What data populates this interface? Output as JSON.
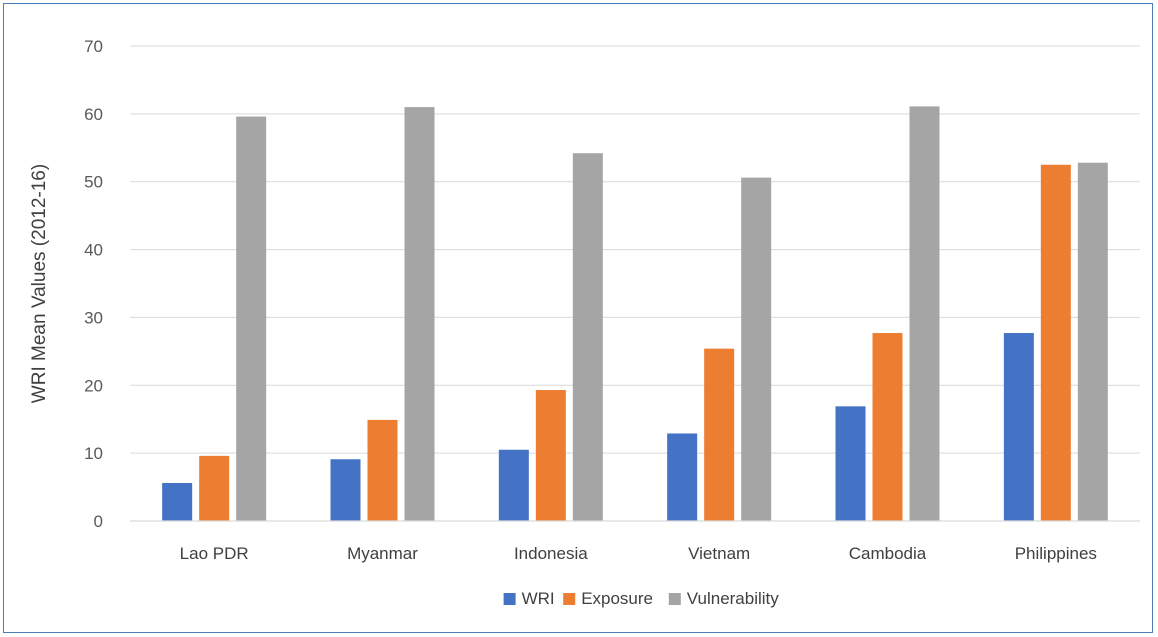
{
  "chart_data": {
    "type": "bar",
    "title": "",
    "xlabel": "",
    "ylabel": "WRI Mean Values (2012-16)",
    "ylim": [
      0,
      70
    ],
    "yticks": [
      "0",
      "10",
      "20",
      "30",
      "40",
      "50",
      "60",
      "70"
    ],
    "grid": true,
    "legend_position": "bottom",
    "categories": [
      "Lao PDR",
      "Myanmar",
      "Indonesia",
      "Vietnam",
      "Cambodia",
      "Philippines"
    ],
    "series": [
      {
        "name": "WRI",
        "color": "#4472c4",
        "values": [
          5.6,
          9.1,
          10.5,
          12.9,
          16.9,
          27.7
        ]
      },
      {
        "name": "Exposure",
        "color": "#ed7d31",
        "values": [
          9.6,
          14.9,
          19.3,
          25.4,
          27.7,
          52.5
        ]
      },
      {
        "name": "Vulnerability",
        "color": "#a5a5a5",
        "values": [
          59.6,
          61.0,
          54.2,
          50.6,
          61.1,
          52.8
        ]
      }
    ]
  }
}
